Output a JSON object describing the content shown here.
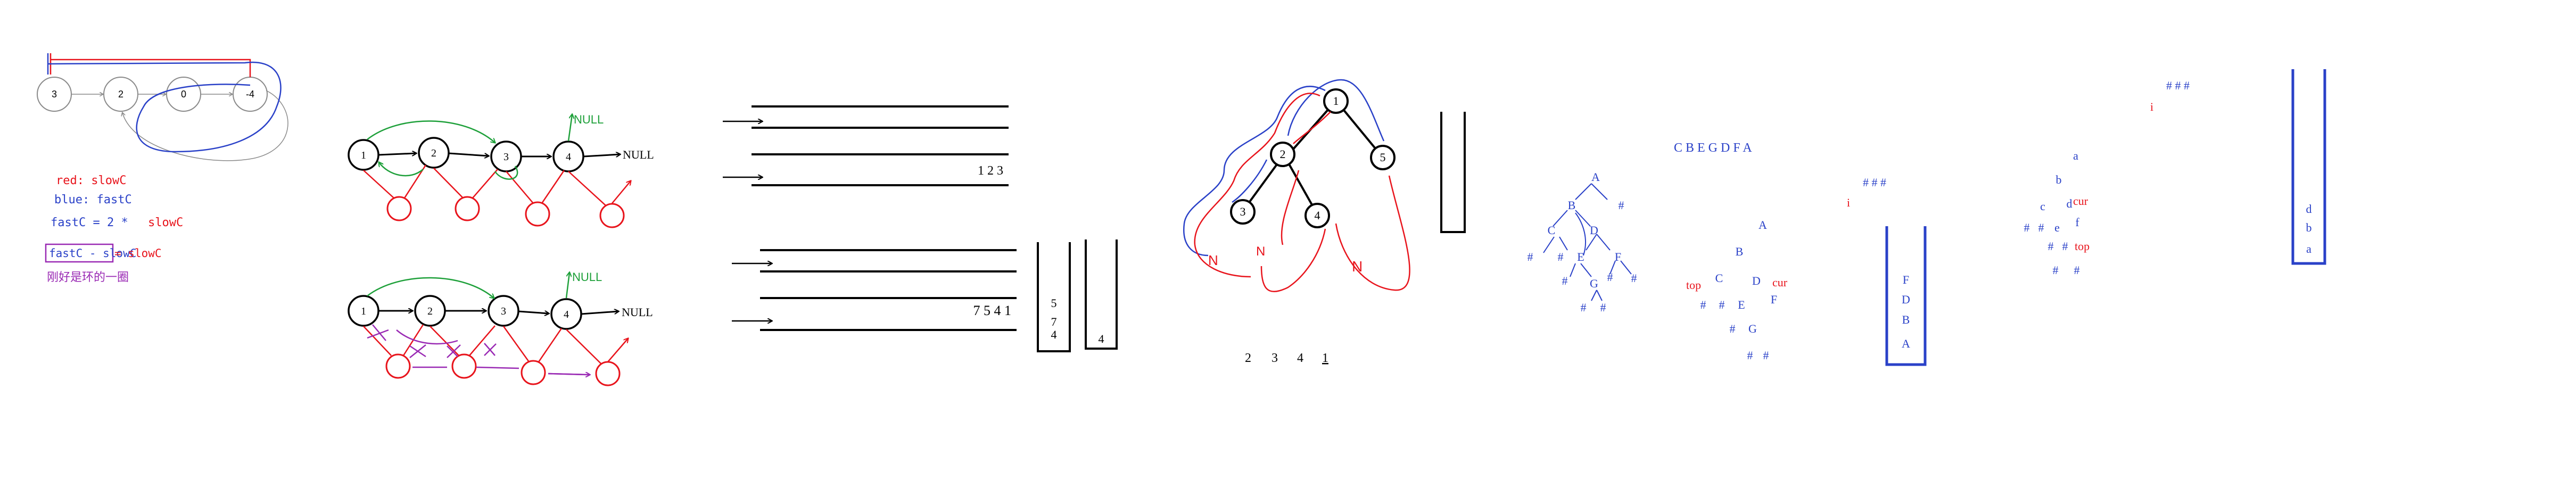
{
  "colors": {
    "red": "#e8141c",
    "blue": "#2a41c8",
    "green": "#1ea03a",
    "purple": "#9a2ab4",
    "black": "#000000",
    "gray": "#8a8a8a"
  },
  "cycle_diagram": {
    "nodes": [
      "3",
      "2",
      "0",
      "-4"
    ],
    "legend_red": "red: slowC",
    "legend_blue": "blue: fastC",
    "formula1_lhs": "fastC = 2 *",
    "formula1_rhs": "slowC",
    "formula2_box": "fastC - slowC",
    "formula2_rhs": "= slowC",
    "note": "刚好是环的一圈"
  },
  "linked_list_top": {
    "nodes": [
      "1",
      "2",
      "3",
      "4"
    ],
    "null_label": "NULL",
    "green_null": "NULL"
  },
  "linked_list_bottom": {
    "nodes": [
      "1",
      "2",
      "3",
      "4"
    ],
    "null_label": "NULL",
    "green_null": "NULL"
  },
  "queue_top": {
    "values": "1 2 3"
  },
  "queue_bottom": {
    "values": "7 5 4 1"
  },
  "stack_pair": {
    "left": [
      "5",
      "7",
      "4"
    ],
    "right": [
      "4"
    ]
  },
  "binary_tree": {
    "nodes": [
      "1",
      "2",
      "3",
      "4",
      "5"
    ],
    "sequence": [
      "2",
      "3",
      "4",
      "1"
    ]
  },
  "preorder_tree": {
    "nodes": [
      "A",
      "B",
      "C",
      "D",
      "E",
      "F",
      "G"
    ],
    "hash": "#"
  },
  "sequence_label": "C B E G D F A",
  "traversal_tree": {
    "nodes": [
      "A",
      "B",
      "C",
      "D",
      "E",
      "F",
      "G"
    ],
    "hash": "#",
    "top_label": "top",
    "cur_label": "cur"
  },
  "hash_row_1": "# # #",
  "index_i_1": "i",
  "stack_fdba": [
    "F",
    "D",
    "B",
    "A"
  ],
  "char_tree": {
    "nodes": [
      "a",
      "b",
      "c",
      "d",
      "e",
      "f"
    ],
    "hash": "#",
    "cur_label": "cur",
    "top_label": "top"
  },
  "hash_row_2": "# # #",
  "index_i_2": "i",
  "stack_dba": [
    "d",
    "b",
    "a"
  ]
}
